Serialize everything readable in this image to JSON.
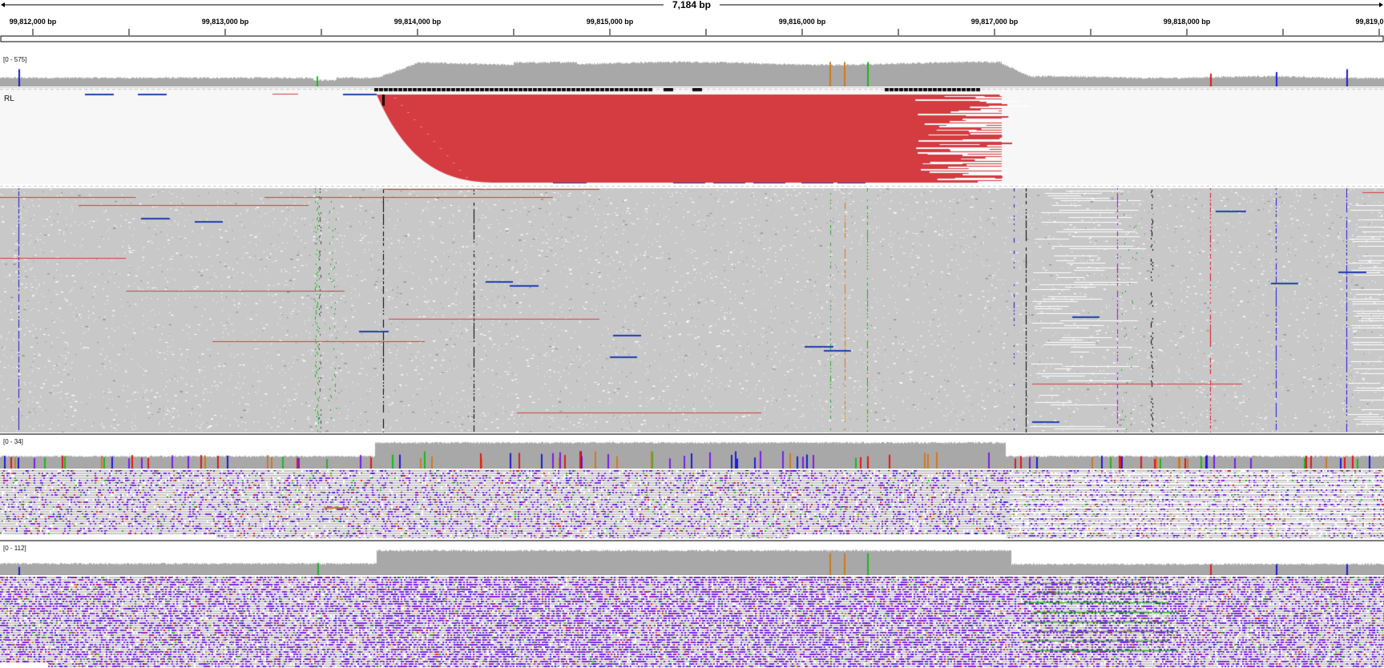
{
  "ruler": {
    "span_label": "7,184 bp",
    "ticks": [
      "99,812,000 bp",
      "99,813,000 bp",
      "99,814,000 bp",
      "99,815,000 bp",
      "99,816,000 bp",
      "99,817,000 bp",
      "99,818,000 bp",
      "99,819,0"
    ]
  },
  "tracks": {
    "coverage1": {
      "range": "[0 - 575]"
    },
    "alignments1": {
      "group_label": "RL"
    },
    "coverage2": {
      "range": "[0 - 34]"
    },
    "coverage3": {
      "range": "[0 - 112]"
    }
  },
  "colors": {
    "read_gray": "#c8c8c8",
    "coverage_gray": "#a8a8a8",
    "clipped_red": "#d43c42",
    "insertion_purple": "#7b1fe0",
    "deletion_black": "#111111",
    "mismatch_A": "#1fb41f",
    "mismatch_C": "#1c1cd6",
    "mismatch_G": "#d1781f",
    "mismatch_T": "#e01919",
    "discordant_blue": "#1f3fb0"
  }
}
